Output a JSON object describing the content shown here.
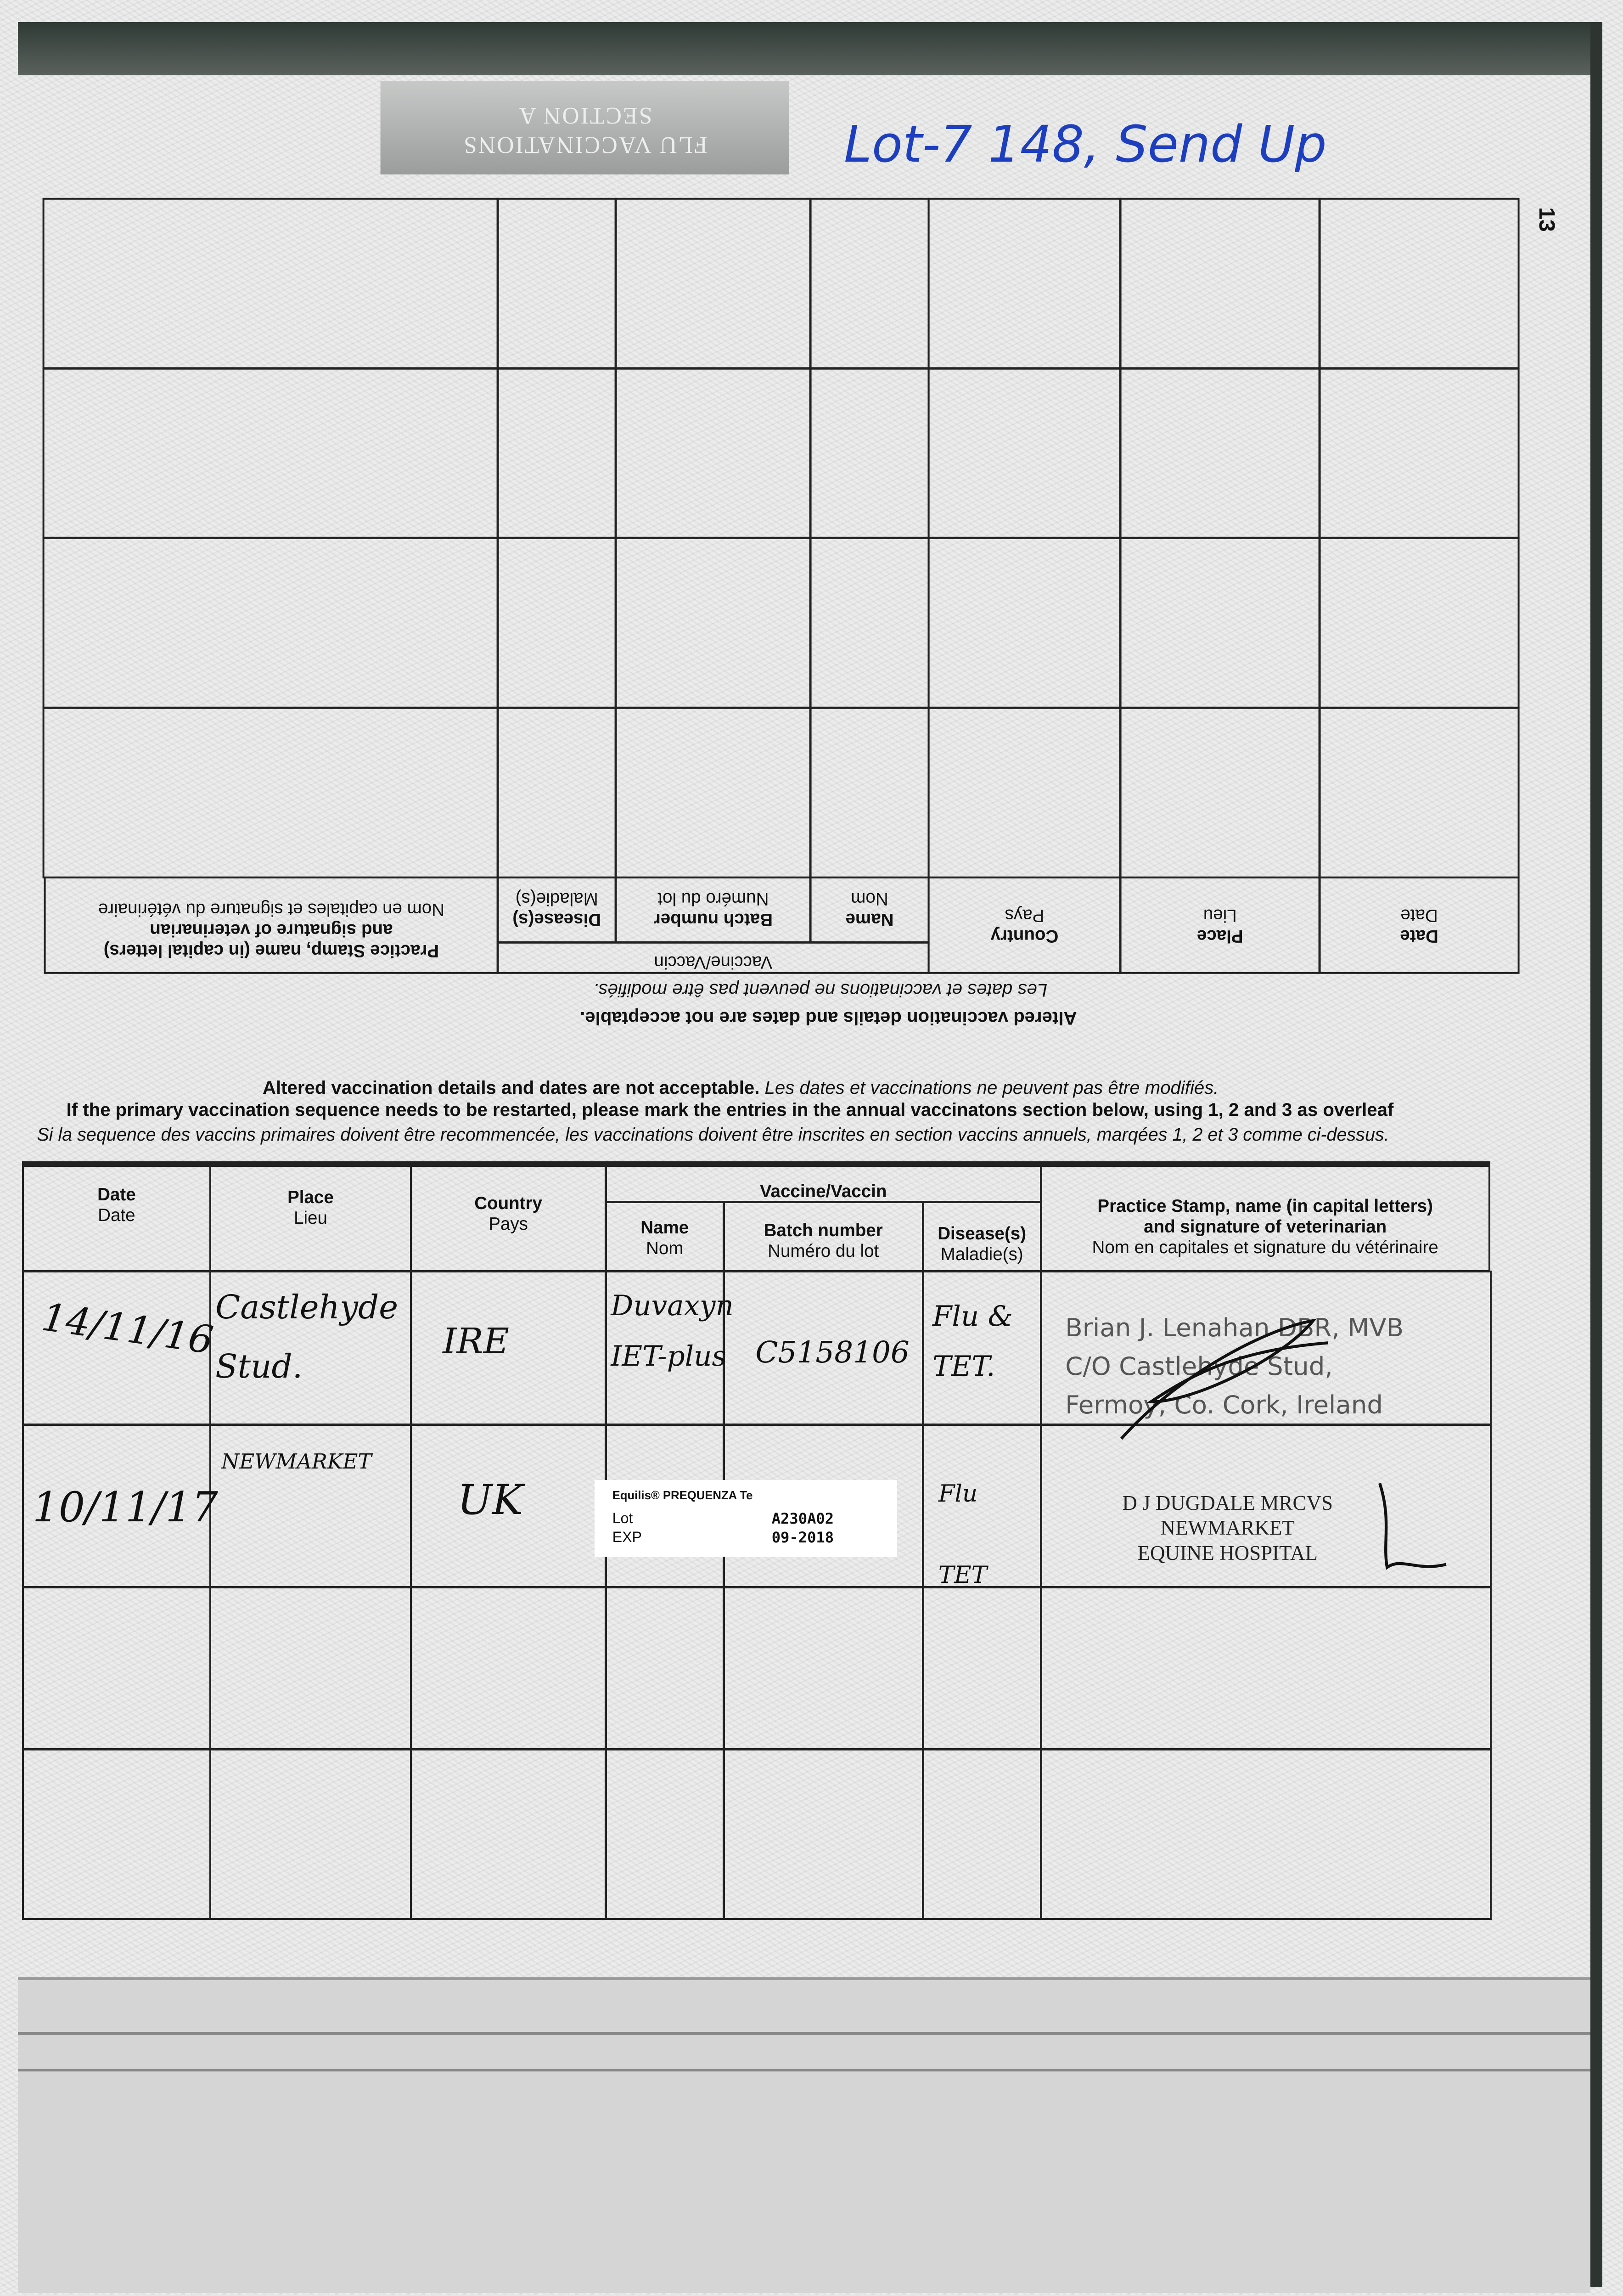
{
  "page_number": "13",
  "handwritten_note": "Lot-7 148, Send Up",
  "upper_section": {
    "title_line1": "FLU VACCINATIONS",
    "title_line2": "SECTION A",
    "notice_en": "Altered vaccination details and dates are not acceptable.",
    "notice_fr": "Les dates et vaccinations ne peuvent pas être modifiés.",
    "headers": {
      "date": "Date",
      "date_fr": "Date",
      "place": "Place",
      "place_fr": "Lieu",
      "country": "Country",
      "country_fr": "Pays",
      "vaccine": "Vaccine/Vaccin",
      "name": "Name",
      "name_fr": "Nom",
      "batch": "Batch number",
      "batch_fr": "Numéro du lot",
      "disease": "Disease(s)",
      "disease_fr": "Maladie(s)",
      "practice": "Practice Stamp, name (in capital letters)",
      "practice2": "and signature of veterinarian",
      "practice_fr": "Nom en capitales et signature du vétérinaire"
    }
  },
  "lower_section": {
    "notice_en": "Altered vaccination details and dates are not acceptable.",
    "notice_fr": "Les dates et vaccinations ne peuvent pas être modifiés.",
    "instruction_en": "If the primary vaccination sequence needs to be restarted, please mark the entries in the annual vaccinatons section below, using 1, 2 and 3 as overleaf",
    "instruction_fr": "Si la sequence des vaccins primaires doivent être recommencée, les vaccinations doivent être inscrites en section vaccins annuels, marqées 1, 2 et 3 comme ci-dessus.",
    "headers": {
      "date": "Date",
      "date_fr": "Date",
      "place": "Place",
      "place_fr": "Lieu",
      "country": "Country",
      "country_fr": "Pays",
      "vaccine": "Vaccine/Vaccin",
      "name": "Name",
      "name_fr": "Nom",
      "batch": "Batch number",
      "batch_fr": "Numéro du lot",
      "disease": "Disease(s)",
      "disease_fr": "Maladie(s)",
      "practice": "Practice Stamp, name (in capital letters)",
      "practice2": "and signature of veterinarian",
      "practice_fr": "Nom en capitales et signature du vétérinaire"
    },
    "rows": [
      {
        "date": "14/11/16",
        "place": "Castlehyde Stud.",
        "country": "IRE",
        "name": "Duvaxyn IET-plus",
        "batch": "C5158106",
        "disease": "Flu & TET.",
        "stamp": [
          "Brian J. Lenahan DBR, MVB",
          "C/O Castlehyde Stud,",
          "Fermoy, Co. Cork, Ireland"
        ]
      },
      {
        "date": "10/11/17",
        "place": "NEWMARKET",
        "country": "UK",
        "label_brand": "Equilis® PREQUENZA Te",
        "label_lot_key": "Lot",
        "label_lot": "A230A02",
        "label_exp_key": "EXP",
        "label_exp": "09-2018",
        "disease": "Flu TET",
        "stamp": [
          "D J DUGDALE MRCVS",
          "NEWMARKET",
          "EQUINE HOSPITAL"
        ]
      }
    ]
  }
}
